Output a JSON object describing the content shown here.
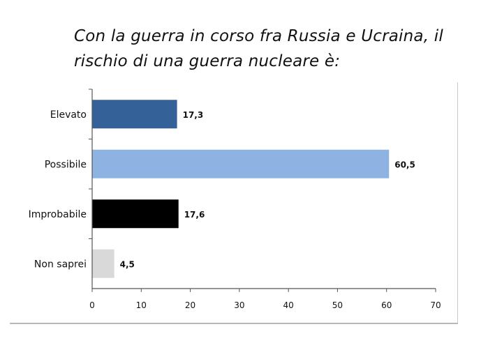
{
  "chart_data": {
    "type": "bar",
    "orientation": "horizontal",
    "title": "Con la guerra in corso fra Russia e Ucraina, il rischio di una guerra nucleare è:",
    "categories": [
      "Elevato",
      "Possibile",
      "Improbabile",
      "Non saprei"
    ],
    "values": [
      17.3,
      60.5,
      17.6,
      4.5
    ],
    "value_labels": [
      "17,3",
      "60,5",
      "17,6",
      "4,5"
    ],
    "colors": [
      "#336198",
      "#8eb3e3",
      "#000000",
      "#d9d9d9"
    ],
    "xlim": [
      0,
      70
    ],
    "xticks": [
      0,
      10,
      20,
      30,
      40,
      50,
      60,
      70
    ],
    "xlabel": "",
    "ylabel": "",
    "grid": false,
    "legend": "none"
  }
}
